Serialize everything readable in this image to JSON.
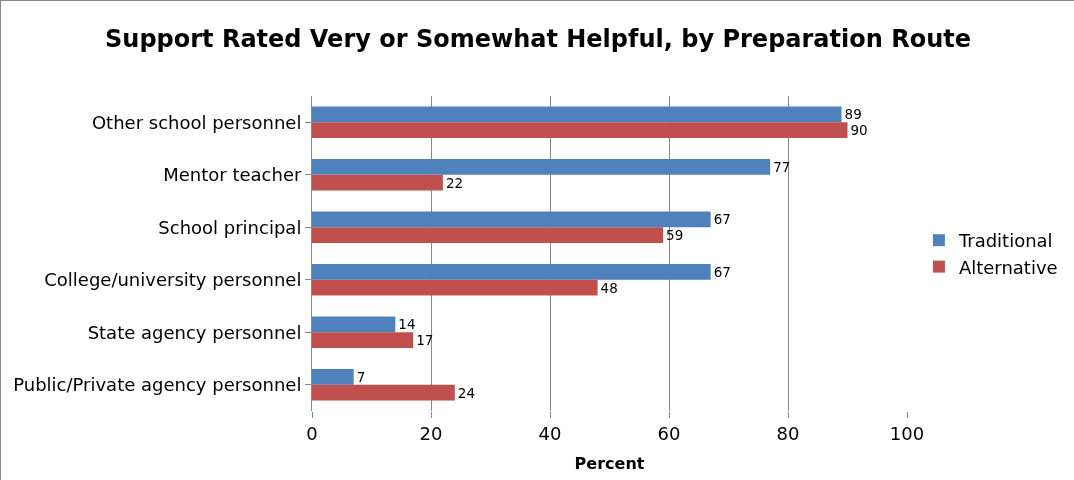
{
  "chart_data": {
    "type": "bar",
    "orientation": "horizontal",
    "title": "Support Rated Very or Somewhat Helpful, by Preparation Route",
    "xlabel": "Percent",
    "categories": [
      "Other school personnel",
      "Mentor teacher",
      "School principal",
      "College/university personnel",
      "State agency personnel",
      "Public/Private agency personnel"
    ],
    "series": [
      {
        "name": "Traditional",
        "color": "#4f81bd",
        "values": [
          89,
          77,
          67,
          67,
          14,
          7
        ]
      },
      {
        "name": "Alternative",
        "color": "#c0504d",
        "values": [
          90,
          22,
          59,
          48,
          17,
          24
        ]
      }
    ],
    "xlim": [
      0,
      100
    ],
    "xticks": [
      0,
      20,
      40,
      60,
      80,
      100
    ],
    "grid": "x",
    "legend": "right",
    "data_labels": true
  }
}
